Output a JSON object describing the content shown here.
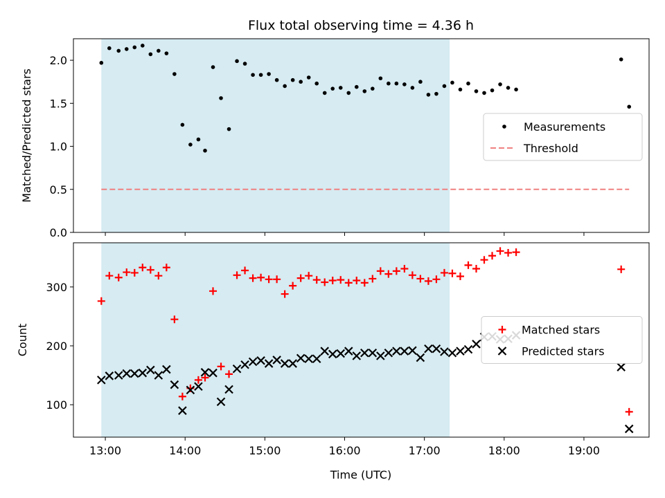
{
  "chart_data": [
    {
      "type": "scatter",
      "title": "Flux total observing time = 4.36 h",
      "ylabel": "Matched/Predicted stars",
      "xlabel": "",
      "ylim": [
        0,
        2.25
      ],
      "yticks": [
        "0.0",
        "0.5",
        "1.0",
        "1.5",
        "2.0"
      ],
      "shaded_span": {
        "start": "12:57",
        "end": "17:19",
        "color": "#add8e6"
      },
      "legend_location": "center right",
      "series": [
        {
          "name": "Measurements",
          "kind": "scatter",
          "marker": "dot",
          "color": "#000000",
          "points": [
            [
              "12:57",
              1.97
            ],
            [
              "13:03",
              2.14
            ],
            [
              "13:10",
              2.11
            ],
            [
              "13:16",
              2.13
            ],
            [
              "13:22",
              2.15
            ],
            [
              "13:28",
              2.17
            ],
            [
              "13:34",
              2.07
            ],
            [
              "13:40",
              2.11
            ],
            [
              "13:46",
              2.08
            ],
            [
              "13:52",
              1.84
            ],
            [
              "13:58",
              1.25
            ],
            [
              "14:04",
              1.02
            ],
            [
              "14:10",
              1.08
            ],
            [
              "14:15",
              0.95
            ],
            [
              "14:21",
              1.92
            ],
            [
              "14:27",
              1.56
            ],
            [
              "14:33",
              1.2
            ],
            [
              "14:39",
              1.99
            ],
            [
              "14:45",
              1.96
            ],
            [
              "14:51",
              1.83
            ],
            [
              "14:57",
              1.83
            ],
            [
              "15:03",
              1.84
            ],
            [
              "15:09",
              1.77
            ],
            [
              "15:15",
              1.7
            ],
            [
              "15:21",
              1.77
            ],
            [
              "15:27",
              1.75
            ],
            [
              "15:33",
              1.8
            ],
            [
              "15:39",
              1.73
            ],
            [
              "15:45",
              1.62
            ],
            [
              "15:51",
              1.67
            ],
            [
              "15:57",
              1.68
            ],
            [
              "16:03",
              1.62
            ],
            [
              "16:09",
              1.69
            ],
            [
              "16:15",
              1.64
            ],
            [
              "16:21",
              1.67
            ],
            [
              "16:27",
              1.79
            ],
            [
              "16:33",
              1.73
            ],
            [
              "16:39",
              1.73
            ],
            [
              "16:45",
              1.72
            ],
            [
              "16:51",
              1.68
            ],
            [
              "16:57",
              1.75
            ],
            [
              "17:03",
              1.6
            ],
            [
              "17:09",
              1.61
            ],
            [
              "17:15",
              1.7
            ],
            [
              "17:21",
              1.74
            ],
            [
              "17:27",
              1.66
            ],
            [
              "17:33",
              1.73
            ],
            [
              "17:39",
              1.64
            ],
            [
              "17:45",
              1.62
            ],
            [
              "17:51",
              1.65
            ],
            [
              "17:57",
              1.72
            ],
            [
              "18:03",
              1.68
            ],
            [
              "18:09",
              1.66
            ],
            [
              "19:28",
              2.01
            ],
            [
              "19:34",
              1.46
            ]
          ]
        },
        {
          "name": "Threshold",
          "kind": "line",
          "style": "dashed",
          "color": "#f08080",
          "points": [
            [
              "12:57",
              0.5
            ],
            [
              "19:34",
              0.5
            ]
          ]
        }
      ]
    },
    {
      "type": "scatter",
      "title": "",
      "ylabel": "Count",
      "xlabel": "Time (UTC)",
      "ylim": [
        45,
        375
      ],
      "yticks": [
        "100",
        "200",
        "300"
      ],
      "xticks": [
        "13:00",
        "14:00",
        "15:00",
        "16:00",
        "17:00",
        "18:00",
        "19:00"
      ],
      "shaded_span": {
        "start": "12:57",
        "end": "17:19",
        "color": "#add8e6"
      },
      "legend_location": "center right",
      "series": [
        {
          "name": "Matched stars",
          "kind": "scatter",
          "marker": "plus",
          "color": "#ff0000",
          "points": [
            [
              "12:57",
              276
            ],
            [
              "13:03",
              319
            ],
            [
              "13:10",
              316
            ],
            [
              "13:16",
              325
            ],
            [
              "13:22",
              324
            ],
            [
              "13:28",
              333
            ],
            [
              "13:34",
              329
            ],
            [
              "13:40",
              319
            ],
            [
              "13:46",
              333
            ],
            [
              "13:52",
              245
            ],
            [
              "13:58",
              114
            ],
            [
              "14:04",
              128
            ],
            [
              "14:10",
              142
            ],
            [
              "14:15",
              146
            ],
            [
              "14:21",
              293
            ],
            [
              "14:27",
              165
            ],
            [
              "14:33",
              152
            ],
            [
              "14:39",
              320
            ],
            [
              "14:45",
              328
            ],
            [
              "14:51",
              315
            ],
            [
              "14:57",
              316
            ],
            [
              "15:03",
              313
            ],
            [
              "15:09",
              313
            ],
            [
              "15:15",
              288
            ],
            [
              "15:21",
              302
            ],
            [
              "15:27",
              315
            ],
            [
              "15:33",
              319
            ],
            [
              "15:39",
              312
            ],
            [
              "15:45",
              308
            ],
            [
              "15:51",
              311
            ],
            [
              "15:57",
              312
            ],
            [
              "16:03",
              307
            ],
            [
              "16:09",
              311
            ],
            [
              "16:15",
              307
            ],
            [
              "16:21",
              314
            ],
            [
              "16:27",
              327
            ],
            [
              "16:33",
              322
            ],
            [
              "16:39",
              327
            ],
            [
              "16:45",
              331
            ],
            [
              "16:51",
              320
            ],
            [
              "16:57",
              314
            ],
            [
              "17:03",
              310
            ],
            [
              "17:09",
              313
            ],
            [
              "17:15",
              324
            ],
            [
              "17:21",
              323
            ],
            [
              "17:27",
              318
            ],
            [
              "17:33",
              337
            ],
            [
              "17:39",
              331
            ],
            [
              "17:45",
              346
            ],
            [
              "17:51",
              353
            ],
            [
              "17:57",
              361
            ],
            [
              "18:03",
              358
            ],
            [
              "18:09",
              359
            ],
            [
              "19:28",
              330
            ],
            [
              "19:34",
              88
            ]
          ]
        },
        {
          "name": "Predicted stars",
          "kind": "scatter",
          "marker": "x",
          "color": "#000000",
          "points": [
            [
              "12:57",
              142
            ],
            [
              "13:03",
              149
            ],
            [
              "13:10",
              150
            ],
            [
              "13:16",
              153
            ],
            [
              "13:22",
              153
            ],
            [
              "13:28",
              154
            ],
            [
              "13:34",
              159
            ],
            [
              "13:40",
              150
            ],
            [
              "13:46",
              160
            ],
            [
              "13:52",
              134
            ],
            [
              "13:58",
              90
            ],
            [
              "14:04",
              125
            ],
            [
              "14:10",
              131
            ],
            [
              "14:15",
              155
            ],
            [
              "14:21",
              154
            ],
            [
              "14:27",
              105
            ],
            [
              "14:33",
              126
            ],
            [
              "14:39",
              161
            ],
            [
              "14:45",
              168
            ],
            [
              "14:51",
              173
            ],
            [
              "14:57",
              175
            ],
            [
              "15:03",
              170
            ],
            [
              "15:09",
              176
            ],
            [
              "15:15",
              170
            ],
            [
              "15:21",
              170
            ],
            [
              "15:27",
              179
            ],
            [
              "15:33",
              178
            ],
            [
              "15:39",
              178
            ],
            [
              "15:45",
              191
            ],
            [
              "15:51",
              186
            ],
            [
              "15:57",
              187
            ],
            [
              "16:03",
              191
            ],
            [
              "16:09",
              183
            ],
            [
              "16:15",
              188
            ],
            [
              "16:21",
              188
            ],
            [
              "16:27",
              183
            ],
            [
              "16:33",
              188
            ],
            [
              "16:39",
              191
            ],
            [
              "16:45",
              191
            ],
            [
              "16:51",
              192
            ],
            [
              "16:57",
              180
            ],
            [
              "17:03",
              195
            ],
            [
              "17:09",
              195
            ],
            [
              "17:15",
              190
            ],
            [
              "17:21",
              188
            ],
            [
              "17:27",
              191
            ],
            [
              "17:33",
              194
            ],
            [
              "17:39",
              203
            ],
            [
              "17:45",
              215
            ],
            [
              "17:51",
              216
            ],
            [
              "17:57",
              211
            ],
            [
              "18:03",
              212
            ],
            [
              "18:09",
              218
            ],
            [
              "19:28",
              164
            ],
            [
              "19:34",
              59
            ]
          ]
        }
      ]
    }
  ]
}
